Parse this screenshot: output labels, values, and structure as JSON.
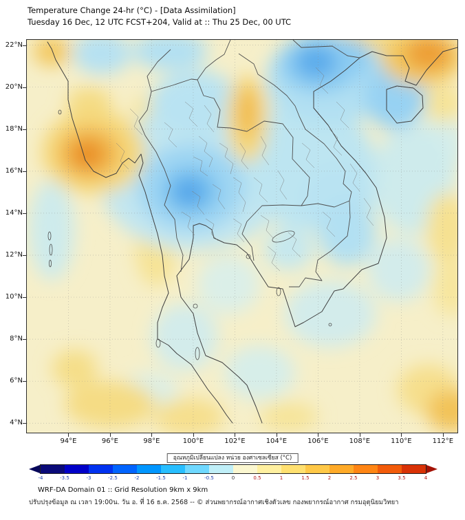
{
  "header": {
    "title": "Temperature Change 24-hr (°C) - [Data Assimilation]",
    "subtitle": "Tuesday 16 Dec, 12 UTC FCST+204, Valid at :: Thu 25 Dec, 00 UTC"
  },
  "footer": {
    "line1": "WRF-DA Domain 01 :: Grid Resolution 9km x 9km",
    "line2": "ปรับปรุงข้อมูล ณ เวลา 19:00น. วัน อ. ที่ 16 ธ.ค. 2568 -- © ส่วนพยากรณ์อากาศเชิงตัวเลข กองพยากรณ์อากาศ กรมอุตุนิยมวิทยา"
  },
  "chart_data": {
    "type": "heatmap",
    "title": "Temperature Change 24-hr (°C) - [Data Assimilation]",
    "subtitle": "Tuesday 16 Dec, 12 UTC FCST+204, Valid at :: Thu 25 Dec, 00 UTC",
    "xlabel": "",
    "ylabel": "",
    "grid": true,
    "axes": {
      "lon_min": 92.0,
      "lon_max": 112.7,
      "lat_min": 3.55,
      "lat_max": 22.25
    },
    "x_axis": {
      "ticks": [
        {
          "v": 94,
          "label": "94°E"
        },
        {
          "v": 96,
          "label": "96°E"
        },
        {
          "v": 98,
          "label": "98°E"
        },
        {
          "v": 100,
          "label": "100°E"
        },
        {
          "v": 102,
          "label": "102°E"
        },
        {
          "v": 104,
          "label": "104°E"
        },
        {
          "v": 106,
          "label": "106°E"
        },
        {
          "v": 108,
          "label": "108°E"
        },
        {
          "v": 110,
          "label": "110°E"
        },
        {
          "v": 112,
          "label": "112°E"
        }
      ]
    },
    "y_axis": {
      "ticks": [
        {
          "v": 22,
          "label": "22°N"
        },
        {
          "v": 20,
          "label": "20°N"
        },
        {
          "v": 18,
          "label": "18°N"
        },
        {
          "v": 16,
          "label": "16°N"
        },
        {
          "v": 14,
          "label": "14°N"
        },
        {
          "v": 12,
          "label": "12°N"
        },
        {
          "v": 10,
          "label": "10°N"
        },
        {
          "v": 8,
          "label": "8°N"
        },
        {
          "v": 6,
          "label": "6°N"
        },
        {
          "v": 4,
          "label": "4°N"
        }
      ]
    },
    "colorbar": {
      "label": "อุณหภูมิเปลี่ยนแปลง หน่วย องศาเซลเซียส (°C)",
      "levels": [
        -4,
        -3.5,
        -3,
        -2.5,
        -2,
        -1.5,
        -1,
        -0.5,
        0,
        0.5,
        1,
        1.5,
        2,
        2.5,
        3,
        3.5,
        4
      ],
      "cell_colors": [
        "#0A0A78",
        "#0000C8",
        "#0032F0",
        "#0064FF",
        "#0096FF",
        "#28BEFF",
        "#6FD8FF",
        "#C0EFF8",
        "#FBF7D0",
        "#FFF0A0",
        "#FFE070",
        "#FFC847",
        "#FFAA28",
        "#FF8514",
        "#F25B0A",
        "#D93206"
      ],
      "arrow_left_color": "#06065A",
      "arrow_right_color": "#A31205",
      "tick_color_neg": "#1C3FAE",
      "tick_color_zero": "#333333",
      "tick_color_pos": "#B21414"
    },
    "field_color_stops": [
      {
        "v": -3.0,
        "c": "#3E93E6"
      },
      {
        "v": -2.0,
        "c": "#6FBCEE"
      },
      {
        "v": -1.3,
        "c": "#97D2F3"
      },
      {
        "v": -0.8,
        "c": "#B9E3F2"
      },
      {
        "v": -0.4,
        "c": "#DBEFE8"
      },
      {
        "v": 0.0,
        "c": "#F6EFC9"
      },
      {
        "v": 0.4,
        "c": "#F7E9A6"
      },
      {
        "v": 0.8,
        "c": "#F5DC84"
      },
      {
        "v": 1.3,
        "c": "#F3C85E"
      },
      {
        "v": 1.8,
        "c": "#F0B044"
      },
      {
        "v": 2.3,
        "c": "#EC9930"
      },
      {
        "v": 3.0,
        "c": "#E6811B"
      }
    ],
    "anomaly_field_format": "[lon_deg, lat_deg, rx_deg, ry_deg, delta_t_celsius]",
    "anomaly_field": [
      [
        100.0,
        15.6,
        4.5,
        3.4,
        -0.7
      ],
      [
        99.9,
        15.2,
        2.6,
        2.1,
        -1.2
      ],
      [
        99.85,
        15.05,
        1.3,
        1.1,
        -2.0
      ],
      [
        99.8,
        15.0,
        0.55,
        0.5,
        -2.7
      ],
      [
        102.8,
        16.8,
        3.2,
        2.4,
        -0.7
      ],
      [
        105.6,
        16.2,
        3.2,
        3.0,
        -0.75
      ],
      [
        105.9,
        21.2,
        1.0,
        0.8,
        -2.4
      ],
      [
        106.1,
        21.1,
        2.0,
        1.4,
        -1.5
      ],
      [
        107.2,
        21.4,
        1.4,
        1.0,
        -1.5
      ],
      [
        106.5,
        20.4,
        3.0,
        2.2,
        -0.9
      ],
      [
        109.7,
        19.6,
        1.5,
        1.6,
        -1.3
      ],
      [
        104.9,
        20.0,
        1.4,
        1.1,
        -0.9
      ],
      [
        107.4,
        13.1,
        1.4,
        1.6,
        -0.9
      ],
      [
        106.9,
        14.6,
        1.8,
        1.8,
        -0.8
      ],
      [
        104.6,
        12.3,
        1.2,
        1.0,
        -0.65
      ],
      [
        106.6,
        9.2,
        2.2,
        1.6,
        -0.5
      ],
      [
        110.6,
        15.6,
        2.0,
        2.6,
        -0.55
      ],
      [
        100.1,
        19.2,
        2.2,
        1.6,
        -0.8
      ],
      [
        98.9,
        21.7,
        1.8,
        0.9,
        -0.9
      ],
      [
        95.6,
        21.6,
        1.4,
        1.0,
        -0.85
      ],
      [
        93.2,
        13.2,
        1.1,
        2.4,
        -0.55
      ],
      [
        99.6,
        8.1,
        1.6,
        1.6,
        -0.5
      ],
      [
        103.2,
        6.4,
        1.7,
        1.3,
        -0.45
      ],
      [
        109.9,
        11.3,
        1.5,
        1.5,
        -0.5
      ],
      [
        111.9,
        17.3,
        1.2,
        1.5,
        -0.45
      ],
      [
        101.7,
        10.6,
        1.5,
        1.4,
        -0.4
      ],
      [
        97.9,
        5.4,
        1.4,
        1.0,
        -0.4
      ],
      [
        94.9,
        16.8,
        0.75,
        0.65,
        2.7
      ],
      [
        95.0,
        16.85,
        1.5,
        1.25,
        1.7
      ],
      [
        95.2,
        16.9,
        2.5,
        2.0,
        0.9
      ],
      [
        95.0,
        19.2,
        1.1,
        0.8,
        0.8
      ],
      [
        93.2,
        21.7,
        0.9,
        0.7,
        1.3
      ],
      [
        111.3,
        21.6,
        1.1,
        0.8,
        2.2
      ],
      [
        111.0,
        21.4,
        2.0,
        1.3,
        1.3
      ],
      [
        109.9,
        21.9,
        2.6,
        0.9,
        0.7
      ],
      [
        112.0,
        19.2,
        0.9,
        0.9,
        0.6
      ],
      [
        102.6,
        18.8,
        0.5,
        1.2,
        1.6
      ],
      [
        102.6,
        18.5,
        1.0,
        2.1,
        0.9
      ],
      [
        107.9,
        22.2,
        1.2,
        0.6,
        0.9
      ],
      [
        98.2,
        12.4,
        1.0,
        1.9,
        0.6
      ],
      [
        98.0,
        18.9,
        0.9,
        0.7,
        0.6
      ],
      [
        96.0,
        4.9,
        2.2,
        1.1,
        0.8
      ],
      [
        94.3,
        6.6,
        1.1,
        0.9,
        0.75
      ],
      [
        99.8,
        4.3,
        1.7,
        0.9,
        0.7
      ],
      [
        104.6,
        4.3,
        1.4,
        0.7,
        0.55
      ],
      [
        112.4,
        4.6,
        1.2,
        1.0,
        1.4
      ],
      [
        111.3,
        5.6,
        1.5,
        1.2,
        0.7
      ],
      [
        112.2,
        13.3,
        1.0,
        1.7,
        0.65
      ],
      [
        112.4,
        10.5,
        0.9,
        1.4,
        0.5
      ],
      [
        100.8,
        12.9,
        1.3,
        0.8,
        0.5
      ]
    ]
  }
}
